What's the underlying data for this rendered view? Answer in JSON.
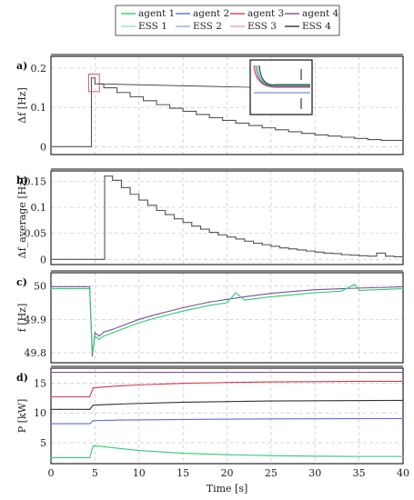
{
  "legend": {
    "items": [
      {
        "label": "agent 1",
        "color": "#2ecc71"
      },
      {
        "label": "agent 2",
        "color": "#5a6fd6"
      },
      {
        "label": "agent 3",
        "color": "#d43a4a"
      },
      {
        "label": "agent 4",
        "color": "#7a4fa0"
      },
      {
        "label": "ESS 1",
        "color": "#9fe3a8"
      },
      {
        "label": "ESS 2",
        "color": "#9aa6e8"
      },
      {
        "label": "ESS 3",
        "color": "#ee9aa4"
      },
      {
        "label": "ESS 4",
        "color": "#333333"
      }
    ]
  },
  "xaxis": {
    "label": "Time [s]",
    "ticks": [
      0,
      5,
      10,
      15,
      20,
      25,
      30,
      35,
      40
    ],
    "range": [
      0,
      40
    ]
  },
  "chart_data": [
    {
      "type": "line",
      "tag": "a)",
      "ylabel": "Δf [Hz]",
      "ylim": [
        -0.02,
        0.23
      ],
      "yticks": [
        0,
        0.1,
        0.2
      ],
      "grid": true,
      "inset": "zoom on t≈4–6 s, agents converging",
      "series": [
        {
          "name": "agent 1",
          "x": [
            0,
            4.4,
            4.6,
            5.0,
            6.0,
            7.5,
            9.0,
            10.5,
            12.0,
            13.5,
            15.0,
            16.5,
            18.0,
            19.5,
            21.0,
            22.5,
            24.0,
            25.5,
            27.0,
            28.5,
            30.0,
            31.5,
            33.0,
            34.5,
            36.0,
            37.5,
            40.0
          ],
          "y": [
            0,
            0,
            0.175,
            0.16,
            0.15,
            0.138,
            0.127,
            0.117,
            0.107,
            0.098,
            0.09,
            0.082,
            0.074,
            0.067,
            0.06,
            0.054,
            0.048,
            0.043,
            0.038,
            0.034,
            0.03,
            0.027,
            0.024,
            0.021,
            0.018,
            0.016,
            0.014
          ]
        }
      ]
    },
    {
      "type": "line",
      "tag": "b)",
      "ylabel": "Δf_average [Hz]",
      "ylim": [
        -0.01,
        0.17
      ],
      "yticks": [
        0,
        0.05,
        0.1,
        0.15
      ],
      "grid": true,
      "series": [
        {
          "name": "average",
          "x": [
            0,
            5.7,
            6.1,
            7,
            8,
            9,
            10,
            11,
            12,
            13,
            14,
            15,
            16,
            17,
            18,
            19,
            20,
            21,
            22,
            23,
            24,
            25,
            26,
            27,
            28,
            29,
            30,
            31,
            32,
            33,
            34,
            35,
            36,
            37,
            38,
            39,
            40
          ],
          "y": [
            0,
            0,
            0.16,
            0.152,
            0.138,
            0.125,
            0.114,
            0.104,
            0.094,
            0.086,
            0.078,
            0.071,
            0.064,
            0.058,
            0.052,
            0.047,
            0.043,
            0.039,
            0.035,
            0.031,
            0.028,
            0.025,
            0.022,
            0.02,
            0.018,
            0.016,
            0.014,
            0.012,
            0.011,
            0.009,
            0.008,
            0.007,
            0.006,
            0.012,
            0.006,
            0.005,
            0.004
          ]
        }
      ]
    },
    {
      "type": "line",
      "tag": "c)",
      "ylabel": "f [Hz]",
      "ylim": [
        49.77,
        50.04
      ],
      "yticks": [
        49.8,
        49.9,
        50
      ],
      "grid": true,
      "series": [
        {
          "name": "agent 4",
          "x": [
            0,
            4.4,
            4.7,
            5.0,
            5.5,
            6,
            7,
            8,
            10,
            12,
            15,
            18,
            20,
            22,
            25,
            28,
            30,
            33,
            35,
            38,
            40
          ],
          "y": [
            49.998,
            49.998,
            49.79,
            49.86,
            49.85,
            49.862,
            49.87,
            49.88,
            49.9,
            49.915,
            49.935,
            49.952,
            49.96,
            49.968,
            49.978,
            49.985,
            49.989,
            49.992,
            49.994,
            49.996,
            49.998
          ]
        },
        {
          "name": "agent 1",
          "x": [
            0,
            4.4,
            4.7,
            5.0,
            5.5,
            6,
            7,
            8,
            10,
            12,
            15,
            18,
            20,
            21,
            22,
            25,
            28,
            30,
            33,
            34.5,
            35,
            38,
            40
          ],
          "y": [
            49.992,
            49.992,
            49.8,
            49.85,
            49.84,
            49.85,
            49.86,
            49.87,
            49.89,
            49.905,
            49.925,
            49.942,
            49.95,
            49.98,
            49.958,
            49.968,
            49.975,
            49.98,
            49.985,
            50.005,
            49.987,
            49.99,
            49.992
          ]
        }
      ]
    },
    {
      "type": "line",
      "tag": "d)",
      "ylabel": "P [kW]",
      "ylim": [
        1.5,
        17.5
      ],
      "yticks": [
        5,
        10,
        15
      ],
      "grid": true,
      "series": [
        {
          "name": "agent 4",
          "x": [
            0,
            4.4,
            40
          ],
          "y": [
            16.8,
            16.8,
            16.8
          ]
        },
        {
          "name": "agent 3",
          "x": [
            0,
            4.4,
            4.8,
            6,
            8,
            10,
            15,
            20,
            25,
            30,
            35,
            40
          ],
          "y": [
            12.7,
            12.7,
            14.2,
            14.35,
            14.55,
            14.7,
            14.95,
            15.1,
            15.2,
            15.25,
            15.3,
            15.3
          ]
        },
        {
          "name": "ESS 4",
          "x": [
            0,
            4.4,
            4.8,
            8,
            15,
            25,
            40
          ],
          "y": [
            10.6,
            10.6,
            11.3,
            11.5,
            11.8,
            12.0,
            12.1
          ]
        },
        {
          "name": "agent 2",
          "x": [
            0,
            4.4,
            4.8,
            8,
            15,
            25,
            40
          ],
          "y": [
            8.2,
            8.2,
            8.7,
            8.8,
            8.9,
            9.0,
            9.05
          ]
        },
        {
          "name": "agent 1",
          "x": [
            0,
            4.4,
            4.8,
            6,
            8,
            10,
            15,
            20,
            25,
            30,
            35,
            40
          ],
          "y": [
            2.5,
            2.5,
            4.5,
            4.35,
            4.0,
            3.7,
            3.25,
            3.0,
            2.85,
            2.75,
            2.7,
            2.7
          ]
        }
      ]
    }
  ]
}
